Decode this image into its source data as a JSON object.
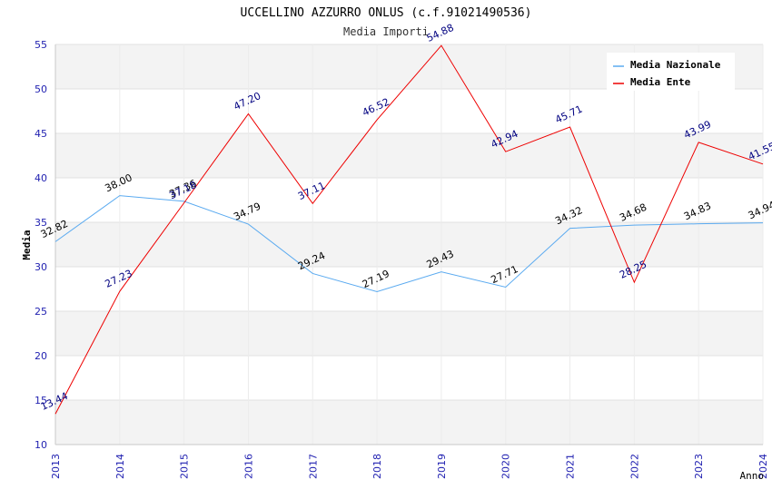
{
  "chart_data": {
    "type": "line",
    "title": "UCCELLINO AZZURRO ONLUS (c.f.91021490536)",
    "subtitle": "Media Importi",
    "xlabel": "Anno",
    "ylabel": "Media",
    "ylim": [
      10,
      55
    ],
    "yticks": [
      "10",
      "15",
      "20",
      "25",
      "30",
      "35",
      "40",
      "45",
      "50",
      "55"
    ],
    "categories": [
      "2013",
      "2014",
      "2015",
      "2016",
      "2017",
      "2018",
      "2019",
      "2020",
      "2021",
      "2022",
      "2023",
      "2024"
    ],
    "legend_position": "top-right",
    "series": [
      {
        "name": "Media Nazionale",
        "color": "#5aaaf0",
        "label_color": "#000000",
        "values": [
          32.82,
          38.0,
          37.36,
          34.79,
          29.24,
          27.19,
          29.43,
          27.71,
          34.32,
          34.68,
          34.83,
          34.94
        ],
        "labels": [
          "32.82",
          "38.00",
          "37.36",
          "34.79",
          "29.24",
          "27.19",
          "29.43",
          "27.71",
          "34.32",
          "34.68",
          "34.83",
          "34.94"
        ]
      },
      {
        "name": "Media Ente",
        "color": "#ee0000",
        "label_color": "#000080",
        "values": [
          13.44,
          27.23,
          37.18,
          47.2,
          37.11,
          46.52,
          54.88,
          42.94,
          45.71,
          28.25,
          43.99,
          41.55
        ],
        "labels": [
          "13.44",
          "27.23",
          "37.18",
          "47.20",
          "37.11",
          "46.52",
          "54.88",
          "42.94",
          "45.71",
          "28.25",
          "43.99",
          "41.55"
        ]
      }
    ]
  }
}
